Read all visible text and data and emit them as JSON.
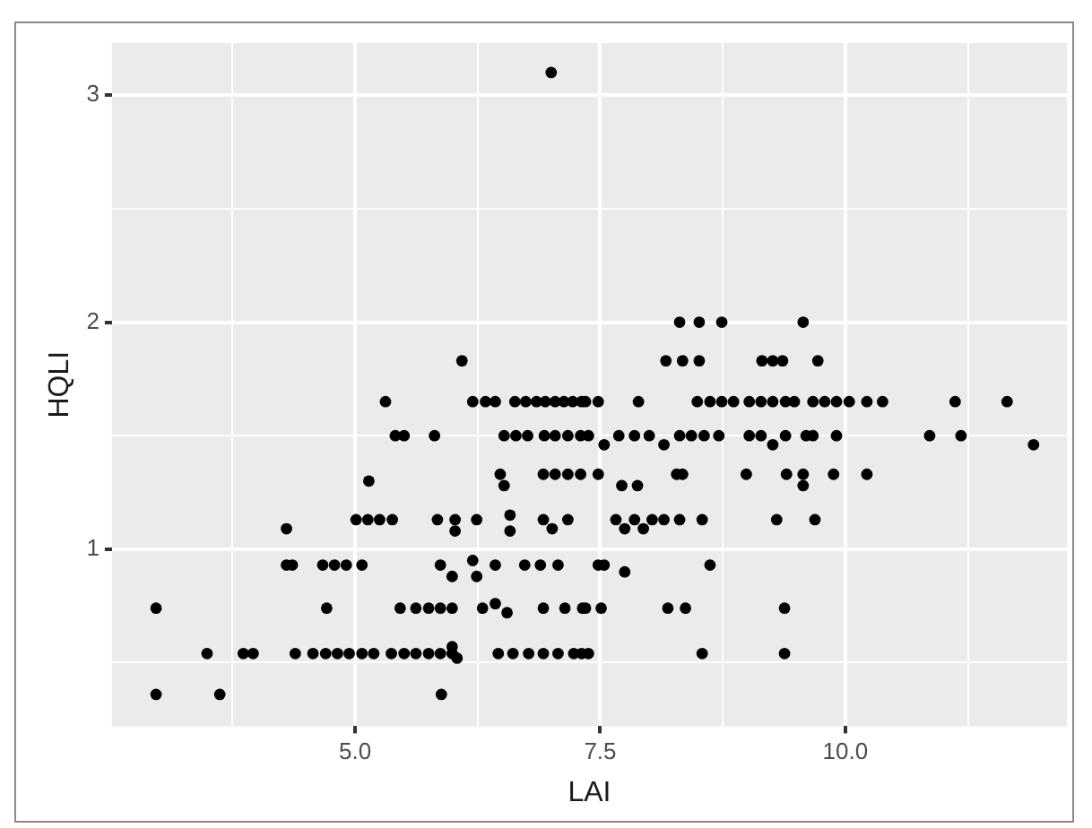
{
  "chart_data": {
    "type": "scatter",
    "xlabel": "LAI",
    "ylabel": "HQLI",
    "xlim": [
      2.52,
      12.26
    ],
    "ylim": [
      0.22,
      3.23
    ],
    "xticks": [
      {
        "value": 3.75,
        "label": null
      },
      {
        "value": 5,
        "label": "5.0"
      },
      {
        "value": 6.25,
        "label": null
      },
      {
        "value": 7.5,
        "label": "7.5"
      },
      {
        "value": 8.75,
        "label": null
      },
      {
        "value": 10,
        "label": "10.0"
      },
      {
        "value": 11.25,
        "label": null
      }
    ],
    "yticks": [
      {
        "value": 0.5,
        "label": null
      },
      1,
      {
        "value": 1.5,
        "label": null
      },
      2,
      {
        "value": 2.5,
        "label": null
      },
      3
    ],
    "grid": true,
    "marker": "circle",
    "legend": false,
    "series": [
      {
        "color": "#000000",
        "x": [
          7.0,
          6.09,
          5.31,
          6.2,
          6.33,
          6.43,
          6.63,
          6.74,
          6.85,
          6.94,
          7.04,
          7.13,
          7.22,
          7.31,
          5.41,
          5.5,
          5.81,
          6.52,
          6.64,
          6.76,
          6.93,
          7.04,
          7.17,
          7.3,
          5.14,
          6.48,
          6.52,
          6.92,
          7.04,
          7.17,
          7.3,
          4.3,
          5.01,
          5.13,
          5.25,
          5.38,
          5.84,
          6.02,
          6.02,
          6.24,
          6.58,
          6.58,
          6.92,
          7.01,
          7.17,
          4.3,
          4.36,
          4.67,
          4.79,
          4.91,
          5.07,
          5.87,
          5.99,
          6.2,
          6.24,
          6.43,
          6.73,
          6.89,
          7.07,
          2.97,
          4.71,
          5.46,
          5.62,
          5.75,
          5.87,
          5.99,
          6.3,
          6.43,
          6.55,
          6.92,
          7.14,
          7.32,
          3.49,
          3.86,
          3.96,
          4.39,
          4.57,
          4.7,
          4.82,
          4.94,
          5.07,
          5.19,
          5.37,
          5.5,
          5.62,
          5.75,
          5.87,
          5.99,
          5.99,
          6.04,
          6.46,
          6.61,
          6.77,
          6.92,
          7.07,
          7.23,
          7.31,
          2.97,
          3.62,
          5.88,
          8.31,
          8.51,
          8.74,
          9.57,
          8.17,
          8.34,
          8.51,
          9.15,
          9.26,
          9.36,
          9.72,
          7.35,
          7.48,
          7.89,
          8.49,
          8.62,
          8.74,
          8.86,
          9.02,
          9.14,
          9.26,
          9.39,
          9.48,
          9.67,
          9.79,
          9.91,
          10.04,
          10.22,
          10.38,
          11.12,
          11.65,
          7.38,
          7.54,
          7.69,
          7.85,
          8.0,
          8.15,
          8.31,
          8.43,
          8.56,
          8.71,
          9.02,
          9.14,
          9.26,
          9.39,
          9.6,
          9.67,
          9.91,
          10.86,
          11.18,
          11.92,
          7.48,
          7.72,
          7.88,
          8.28,
          8.34,
          8.99,
          9.4,
          9.57,
          9.57,
          9.88,
          10.22,
          7.66,
          7.75,
          7.85,
          7.94,
          8.03,
          8.15,
          8.31,
          8.54,
          9.3,
          9.69,
          7.48,
          7.54,
          7.75,
          8.62,
          7.35,
          7.51,
          8.19,
          8.37,
          9.38,
          7.38,
          8.54,
          9.38
        ],
        "values": [
          3.1,
          1.83,
          1.65,
          1.65,
          1.65,
          1.65,
          1.65,
          1.65,
          1.65,
          1.65,
          1.65,
          1.65,
          1.65,
          1.65,
          1.5,
          1.5,
          1.5,
          1.5,
          1.5,
          1.5,
          1.5,
          1.5,
          1.5,
          1.5,
          1.3,
          1.33,
          1.28,
          1.33,
          1.33,
          1.33,
          1.33,
          1.09,
          1.13,
          1.13,
          1.13,
          1.13,
          1.13,
          1.13,
          1.08,
          1.13,
          1.15,
          1.08,
          1.13,
          1.09,
          1.13,
          0.93,
          0.93,
          0.93,
          0.93,
          0.93,
          0.93,
          0.93,
          0.88,
          0.95,
          0.88,
          0.93,
          0.93,
          0.93,
          0.93,
          0.74,
          0.74,
          0.74,
          0.74,
          0.74,
          0.74,
          0.74,
          0.74,
          0.76,
          0.72,
          0.74,
          0.74,
          0.74,
          0.54,
          0.54,
          0.54,
          0.54,
          0.54,
          0.54,
          0.54,
          0.54,
          0.54,
          0.54,
          0.54,
          0.54,
          0.54,
          0.54,
          0.54,
          0.57,
          0.54,
          0.52,
          0.54,
          0.54,
          0.54,
          0.54,
          0.54,
          0.54,
          0.54,
          0.36,
          0.36,
          0.36,
          2.0,
          2.0,
          2.0,
          2.0,
          1.83,
          1.83,
          1.83,
          1.83,
          1.83,
          1.83,
          1.83,
          1.65,
          1.65,
          1.65,
          1.65,
          1.65,
          1.65,
          1.65,
          1.65,
          1.65,
          1.65,
          1.65,
          1.65,
          1.65,
          1.65,
          1.65,
          1.65,
          1.65,
          1.65,
          1.65,
          1.65,
          1.5,
          1.46,
          1.5,
          1.5,
          1.5,
          1.46,
          1.5,
          1.5,
          1.5,
          1.5,
          1.5,
          1.5,
          1.46,
          1.5,
          1.5,
          1.5,
          1.5,
          1.5,
          1.5,
          1.46,
          1.33,
          1.28,
          1.28,
          1.33,
          1.33,
          1.33,
          1.33,
          1.33,
          1.28,
          1.33,
          1.33,
          1.13,
          1.09,
          1.13,
          1.09,
          1.13,
          1.13,
          1.13,
          1.13,
          1.13,
          1.13,
          0.93,
          0.93,
          0.9,
          0.93,
          0.74,
          0.74,
          0.74,
          0.74,
          0.74,
          0.54,
          0.54,
          0.54
        ]
      }
    ]
  }
}
